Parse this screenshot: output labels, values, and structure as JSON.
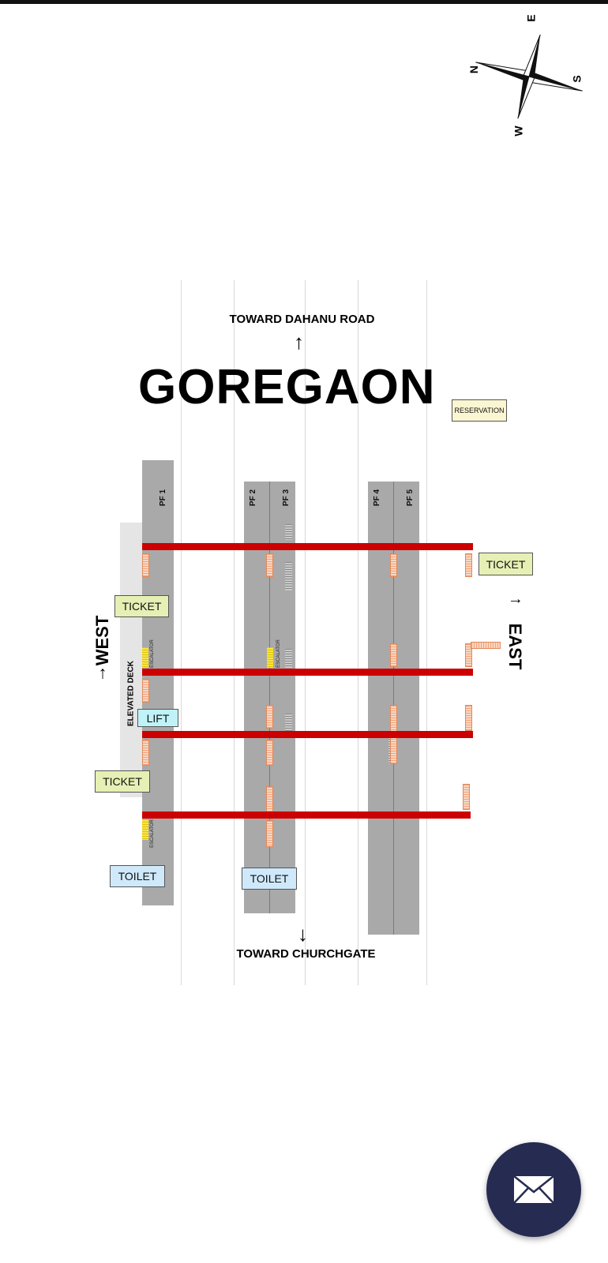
{
  "station": {
    "name": "GOREGAON",
    "north_direction": "TOWARD DAHANU ROAD",
    "south_direction": "TOWARD CHURCHGATE",
    "west_label": "WEST",
    "east_label": "EAST",
    "up_arrow": "↑",
    "down_arrow": "↓",
    "west_arrow": "↑",
    "east_arrow": "↑"
  },
  "compass": {
    "labels": {
      "north": "N",
      "east": "E",
      "south": "S",
      "west": "W"
    }
  },
  "platforms": [
    "PF 1",
    "PF 2",
    "PF 3",
    "PF 4",
    "PF 5"
  ],
  "facilities": {
    "reservation": "RESERVATION",
    "ticket_east": "TICKET",
    "ticket_west_1": "TICKET",
    "ticket_west_2": "TICKET",
    "lift": "LIFT",
    "toilet_1": "TOILET",
    "toilet_2": "TOILET",
    "elevated_deck": "ELEVATED DECK",
    "escalator_1": "ESCALATOR",
    "escalator_2": "ESCALATOR",
    "escalator_3": "ESCALATOR"
  },
  "fab": {
    "icon": "mail-icon"
  },
  "colors": {
    "bridge": "#cc0000",
    "platform": "#a9a9a9",
    "fab": "#262b52"
  }
}
